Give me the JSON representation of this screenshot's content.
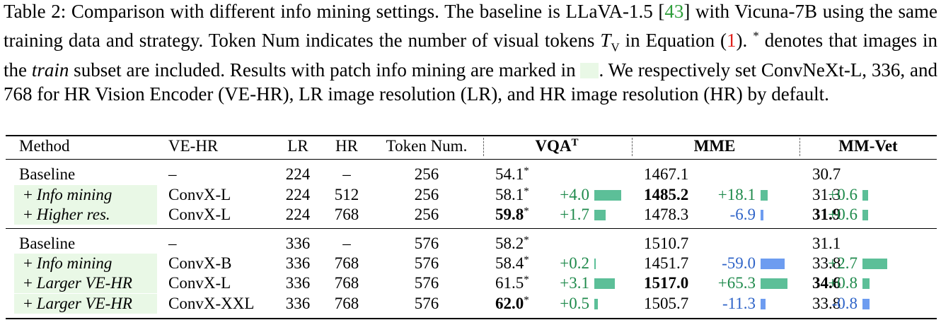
{
  "caption": [
    "Table 2: Comparison with different info mining settings. The baseline is LLaVA-1.5 [",
    "43",
    "] with Vicuna-7B using the same training data and strategy. Token Num indicates the number of visual tokens ",
    "T",
    "V",
    " in Equation (",
    "1",
    "). ",
    "*",
    " denotes that images in the ",
    "train",
    " subset are included. Results with patch info mining are marked in ",
    ". We respectively set ConvNeXt-L, 336, and 768 for HR Vision Encoder (VE-HR), LR image resolution (LR), and HR image resolution (HR) by default."
  ],
  "table": {
    "columns": [
      "Method",
      "VE-HR",
      "LR",
      "HR",
      "Token Num."
    ],
    "metrics": [
      {
        "label": "VQA",
        "sup": "T"
      },
      {
        "label": "MME"
      },
      {
        "label": "MM-Vet"
      }
    ],
    "positive_color": "#5cbf98",
    "negative_color": "#6d9cf0",
    "highlight_color": "#e9f8e6",
    "groups": [
      {
        "rows": [
          {
            "method": "Baseline",
            "ve_hr": "–",
            "lr": "224",
            "hr": "–",
            "tokens": "256",
            "metrics": [
              {
                "value": "54.1",
                "note": "*"
              },
              {
                "value": "1467.1"
              },
              {
                "value": "30.7"
              }
            ]
          },
          {
            "prefix": "+",
            "method": "Info mining",
            "highlight": true,
            "ve_hr": "ConvX-L",
            "lr": "224",
            "hr": "512",
            "tokens": "256",
            "metrics": [
              {
                "value": "58.1",
                "note": "*",
                "delta": 4.0,
                "delta_label": "+4.0"
              },
              {
                "value": "1485.2",
                "bold": true,
                "delta": 18.1,
                "delta_label": "+18.1"
              },
              {
                "value": "31.3",
                "delta": 0.6,
                "delta_label": "+0.6"
              }
            ]
          },
          {
            "prefix": "+",
            "method": "Higher res.",
            "highlight": true,
            "ve_hr": "ConvX-L",
            "lr": "224",
            "hr": "768",
            "tokens": "256",
            "metrics": [
              {
                "value": "59.8",
                "note": "*",
                "bold": true,
                "delta": 1.7,
                "delta_label": "+1.7"
              },
              {
                "value": "1478.3",
                "delta": -6.9,
                "delta_label": "-6.9"
              },
              {
                "value": "31.9",
                "bold": true,
                "delta": 0.6,
                "delta_label": "+0.6"
              }
            ]
          }
        ]
      },
      {
        "rows": [
          {
            "method": "Baseline",
            "ve_hr": "–",
            "lr": "336",
            "hr": "–",
            "tokens": "576",
            "metrics": [
              {
                "value": "58.2",
                "note": "*"
              },
              {
                "value": "1510.7"
              },
              {
                "value": "31.1"
              }
            ]
          },
          {
            "prefix": "+",
            "method": "Info mining",
            "highlight": true,
            "ve_hr": "ConvX-B",
            "lr": "336",
            "hr": "768",
            "tokens": "576",
            "metrics": [
              {
                "value": "58.4",
                "note": "*",
                "delta": 0.2,
                "delta_label": "+0.2"
              },
              {
                "value": "1451.7",
                "delta": -59.0,
                "delta_label": "-59.0"
              },
              {
                "value": "33.8",
                "delta": 2.7,
                "delta_label": "+2.7"
              }
            ]
          },
          {
            "prefix": "+",
            "method": "Larger VE-HR",
            "highlight": true,
            "ve_hr": "ConvX-L",
            "lr": "336",
            "hr": "768",
            "tokens": "576",
            "metrics": [
              {
                "value": "61.5",
                "note": "*",
                "delta": 3.1,
                "delta_label": "+3.1"
              },
              {
                "value": "1517.0",
                "bold": true,
                "delta": 65.3,
                "delta_label": "+65.3"
              },
              {
                "value": "34.6",
                "bold": true,
                "delta": 0.8,
                "delta_label": "+0.8"
              }
            ]
          },
          {
            "prefix": "+",
            "method": "Larger VE-HR",
            "highlight": true,
            "ve_hr": "ConvX-XXL",
            "lr": "336",
            "hr": "768",
            "tokens": "576",
            "metrics": [
              {
                "value": "62.0",
                "note": "*",
                "bold": true,
                "delta": 0.5,
                "delta_label": "+0.5"
              },
              {
                "value": "1505.7",
                "delta": -11.3,
                "delta_label": "-11.3"
              },
              {
                "value": "33.8",
                "delta": -0.8,
                "delta_label": "-0.8"
              }
            ]
          }
        ]
      }
    ]
  }
}
